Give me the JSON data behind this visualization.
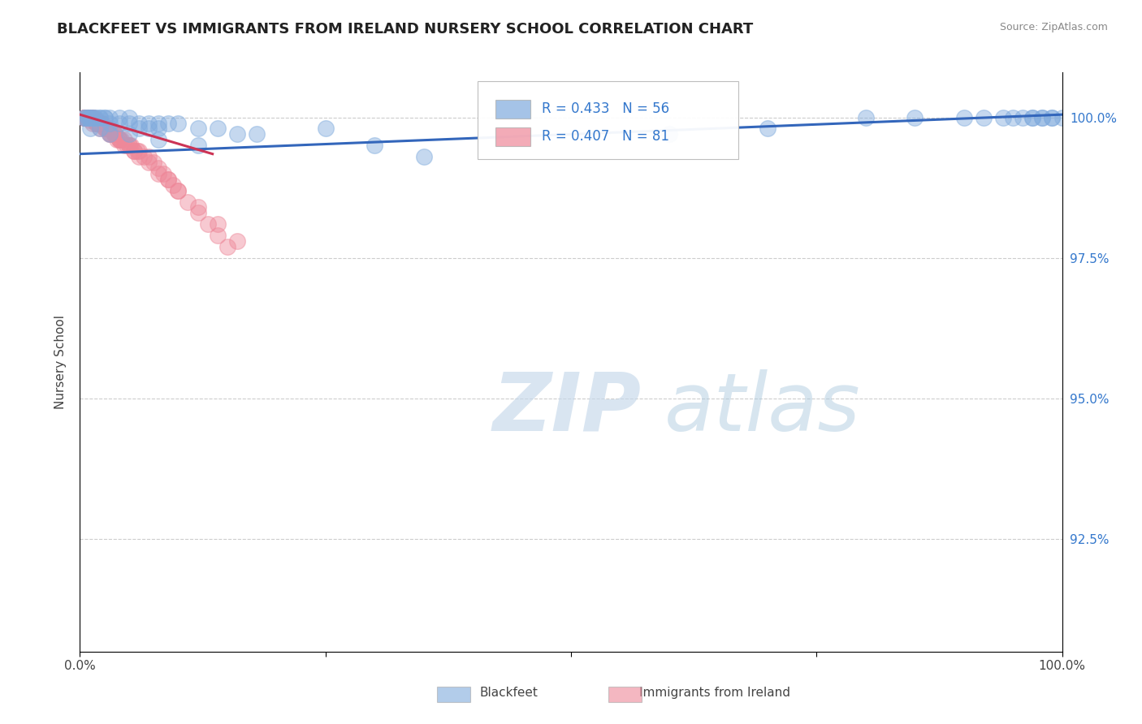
{
  "title": "BLACKFEET VS IMMIGRANTS FROM IRELAND NURSERY SCHOOL CORRELATION CHART",
  "source_text": "Source: ZipAtlas.com",
  "ylabel": "Nursery School",
  "xlim": [
    0.0,
    1.0
  ],
  "ylim": [
    0.905,
    1.008
  ],
  "right_yticks": [
    1.0,
    0.975,
    0.95,
    0.925
  ],
  "right_yticklabels": [
    "100.0%",
    "97.5%",
    "95.0%",
    "92.5%"
  ],
  "grid_color": "#cccccc",
  "blue_color": "#7faadd",
  "pink_color": "#ee8899",
  "blue_R": 0.433,
  "blue_N": 56,
  "pink_R": 0.407,
  "pink_N": 81,
  "legend_label_blue": "Blackfeet",
  "legend_label_pink": "Immigrants from Ireland",
  "blue_line_x": [
    0.0,
    1.0
  ],
  "blue_line_y": [
    0.9935,
    1.0005
  ],
  "pink_line_x": [
    0.0,
    0.135
  ],
  "pink_line_y": [
    1.0005,
    0.9935
  ],
  "blue_scatter_x": [
    0.005,
    0.008,
    0.01,
    0.012,
    0.015,
    0.02,
    0.025,
    0.03,
    0.04,
    0.05,
    0.06,
    0.07,
    0.08,
    0.09,
    0.1,
    0.12,
    0.14,
    0.16,
    0.18,
    0.25,
    0.3,
    0.35,
    0.005,
    0.008,
    0.01,
    0.015,
    0.02,
    0.025,
    0.03,
    0.04,
    0.05,
    0.06,
    0.07,
    0.08,
    0.01,
    0.02,
    0.03,
    0.05,
    0.08,
    0.12,
    0.6,
    0.7,
    0.8,
    0.85,
    0.9,
    0.92,
    0.94,
    0.95,
    0.96,
    0.97,
    0.98,
    0.99,
    1.0,
    0.99,
    0.98,
    0.97
  ],
  "blue_scatter_y": [
    1.0,
    1.0,
    1.0,
    1.0,
    1.0,
    1.0,
    1.0,
    1.0,
    1.0,
    1.0,
    0.999,
    0.999,
    0.999,
    0.999,
    0.999,
    0.998,
    0.998,
    0.997,
    0.997,
    0.998,
    0.995,
    0.993,
    1.0,
    1.0,
    1.0,
    1.0,
    1.0,
    1.0,
    0.999,
    0.999,
    0.999,
    0.998,
    0.998,
    0.998,
    0.998,
    0.998,
    0.997,
    0.997,
    0.996,
    0.995,
    0.997,
    0.998,
    1.0,
    1.0,
    1.0,
    1.0,
    1.0,
    1.0,
    1.0,
    1.0,
    1.0,
    1.0,
    1.0,
    1.0,
    1.0,
    1.0
  ],
  "pink_scatter_x": [
    0.005,
    0.005,
    0.005,
    0.005,
    0.005,
    0.005,
    0.007,
    0.008,
    0.008,
    0.009,
    0.01,
    0.01,
    0.01,
    0.012,
    0.013,
    0.014,
    0.015,
    0.015,
    0.016,
    0.017,
    0.018,
    0.019,
    0.02,
    0.02,
    0.021,
    0.022,
    0.023,
    0.025,
    0.026,
    0.028,
    0.03,
    0.03,
    0.032,
    0.034,
    0.035,
    0.036,
    0.038,
    0.04,
    0.04,
    0.042,
    0.045,
    0.048,
    0.05,
    0.052,
    0.055,
    0.058,
    0.06,
    0.065,
    0.07,
    0.075,
    0.08,
    0.085,
    0.09,
    0.095,
    0.1,
    0.11,
    0.12,
    0.13,
    0.14,
    0.15,
    0.005,
    0.007,
    0.01,
    0.013,
    0.016,
    0.02,
    0.025,
    0.03,
    0.035,
    0.04,
    0.045,
    0.05,
    0.055,
    0.06,
    0.07,
    0.08,
    0.09,
    0.1,
    0.12,
    0.14,
    0.16
  ],
  "pink_scatter_y": [
    1.0,
    1.0,
    1.0,
    1.0,
    1.0,
    1.0,
    1.0,
    1.0,
    1.0,
    1.0,
    1.0,
    1.0,
    1.0,
    1.0,
    1.0,
    1.0,
    0.9995,
    0.9995,
    0.9995,
    0.999,
    0.999,
    0.999,
    0.999,
    0.999,
    0.999,
    0.999,
    0.999,
    0.998,
    0.998,
    0.998,
    0.998,
    0.997,
    0.997,
    0.997,
    0.997,
    0.997,
    0.996,
    0.996,
    0.996,
    0.996,
    0.995,
    0.995,
    0.995,
    0.995,
    0.994,
    0.994,
    0.994,
    0.993,
    0.993,
    0.992,
    0.991,
    0.99,
    0.989,
    0.988,
    0.987,
    0.985,
    0.983,
    0.981,
    0.979,
    0.977,
    1.0,
    1.0,
    0.9995,
    0.999,
    0.999,
    0.998,
    0.998,
    0.997,
    0.997,
    0.996,
    0.996,
    0.995,
    0.994,
    0.993,
    0.992,
    0.99,
    0.989,
    0.987,
    0.984,
    0.981,
    0.978
  ]
}
